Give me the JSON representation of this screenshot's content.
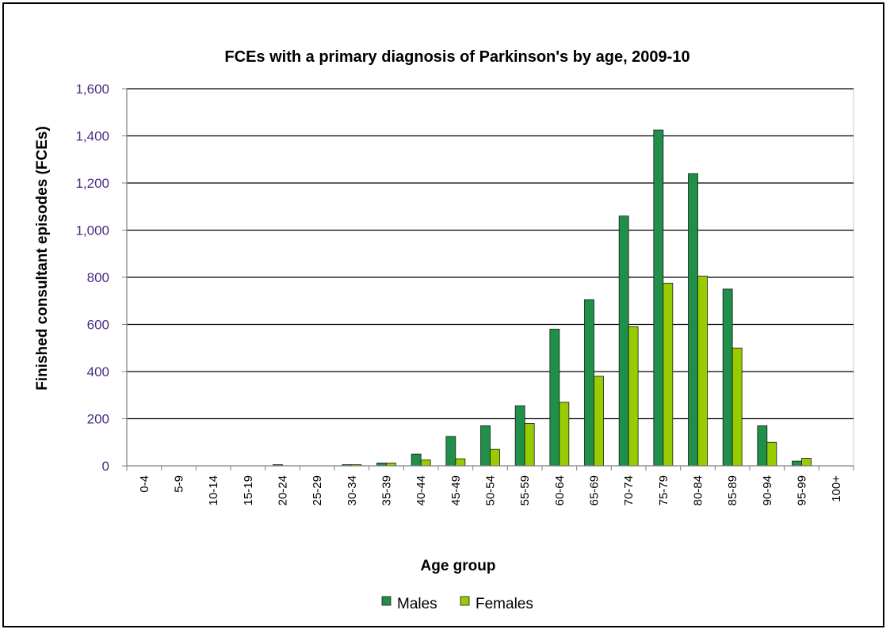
{
  "chart_data": {
    "type": "bar",
    "title": "FCEs with a primary diagnosis of Parkinson's by age, 2009-10",
    "xlabel": "Age group",
    "ylabel": "Finished consultant episodes (FCEs)",
    "ylim": [
      0,
      1600
    ],
    "yticks": [
      0,
      200,
      400,
      600,
      800,
      1000,
      1200,
      1400,
      1600
    ],
    "ytick_labels": [
      "0",
      "200",
      "400",
      "600",
      "800",
      "1,000",
      "1,200",
      "1,400",
      "1,600"
    ],
    "grid": true,
    "legend_position": "bottom",
    "categories": [
      "0-4",
      "5-9",
      "10-14",
      "15-19",
      "20-24",
      "25-29",
      "30-34",
      "35-39",
      "40-44",
      "45-49",
      "50-54",
      "55-59",
      "60-64",
      "65-69",
      "70-74",
      "75-79",
      "80-84",
      "85-89",
      "90-94",
      "95-99",
      "100+"
    ],
    "series": [
      {
        "name": "Males",
        "color": "#1f8f4a",
        "values": [
          0,
          0,
          0,
          0,
          5,
          0,
          5,
          12,
          50,
          125,
          170,
          255,
          580,
          705,
          1060,
          1425,
          1240,
          750,
          170,
          20,
          0
        ]
      },
      {
        "name": "Females",
        "color": "#99cc00",
        "values": [
          0,
          0,
          0,
          0,
          0,
          0,
          5,
          12,
          25,
          30,
          70,
          180,
          270,
          380,
          590,
          775,
          805,
          500,
          100,
          32,
          0
        ]
      }
    ]
  }
}
